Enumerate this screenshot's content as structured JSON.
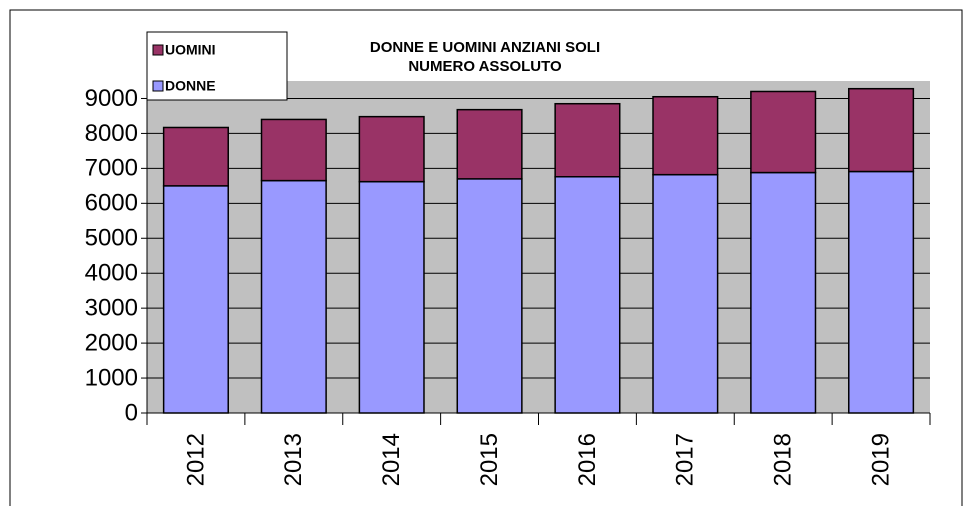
{
  "chart_data": {
    "type": "stacked_bar",
    "title": [
      "DONNE E UOMINI ANZIANI SOLI",
      "NUMERO ASSOLUTO"
    ],
    "categories": [
      "2012",
      "2013",
      "2014",
      "2015",
      "2016",
      "2017",
      "2018",
      "2019"
    ],
    "series": [
      {
        "name": "DONNE",
        "color": "#9999ff",
        "values": [
          6500,
          6650,
          6620,
          6700,
          6760,
          6820,
          6880,
          6910
        ]
      },
      {
        "name": "UOMINI",
        "color": "#993366",
        "values": [
          1670,
          1750,
          1860,
          1980,
          2090,
          2230,
          2320,
          2370
        ]
      }
    ],
    "ylim": [
      0,
      9500
    ],
    "yticks": [
      0,
      1000,
      2000,
      3000,
      4000,
      5000,
      6000,
      7000,
      8000,
      9000
    ],
    "grid": true,
    "plot_background": "#c0c0c0",
    "legend": "top-left"
  }
}
